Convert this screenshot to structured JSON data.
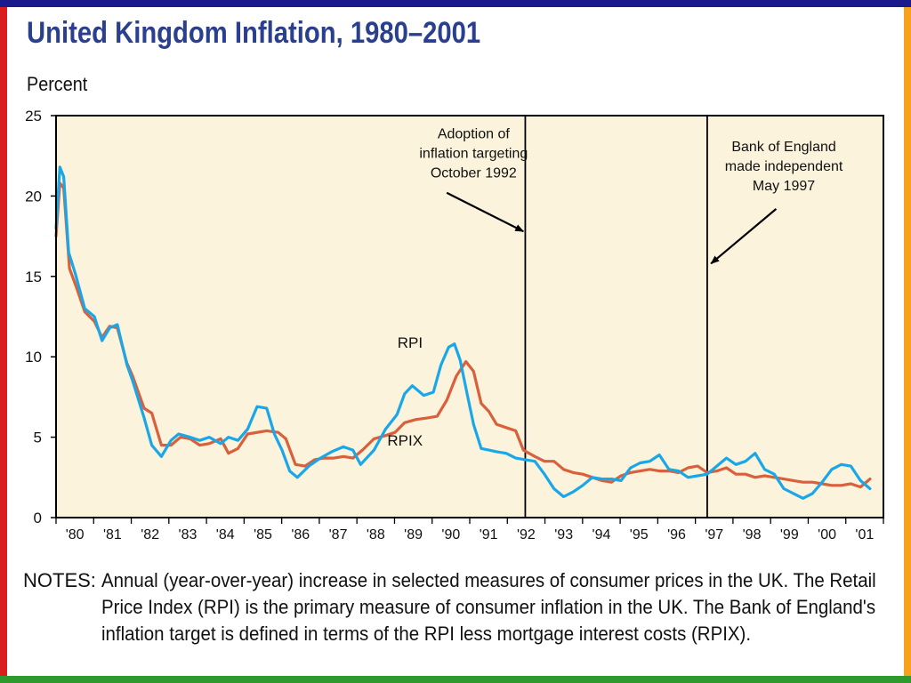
{
  "title": "United Kingdom Inflation, 1980–2001",
  "unit_label": "Percent",
  "notes_label": "NOTES:",
  "notes_lines": [
    "Annual (year-over-year) increase in selected measures of consumer prices in the UK. The Retail",
    "Price Index (RPI) is the primary measure of consumer inflation in the UK. The Bank of England's",
    "inflation target is defined in terms of the RPI less mortgage interest costs (RPIX)."
  ],
  "colors": {
    "rpi": "#1aa7e8",
    "rpix": "#d9603b",
    "plot_bg": "#fbf3dc",
    "title": "#2b3f8f",
    "frame": "#000000"
  },
  "chart_data": {
    "type": "line",
    "title": "United Kingdom Inflation, 1980–2001",
    "ylabel": "Percent",
    "xlim": [
      1980,
      2001.6
    ],
    "ylim": [
      0,
      25
    ],
    "yticks": [
      0,
      5,
      10,
      15,
      20,
      25
    ],
    "xtick_labels": [
      "'80",
      "'81",
      "'82",
      "'83",
      "'84",
      "'85",
      "'86",
      "'87",
      "'88",
      "'89",
      "'90",
      "'91",
      "'92",
      "'93",
      "'94",
      "'95",
      "'96",
      "'97",
      "'98",
      "'99",
      "'00",
      "'01"
    ],
    "grid": false,
    "series": [
      {
        "name": "RPI",
        "x": [
          1980.0,
          1980.1,
          1980.2,
          1980.33,
          1980.5,
          1980.75,
          1981.0,
          1981.2,
          1981.4,
          1981.6,
          1981.85,
          1982.0,
          1982.3,
          1982.5,
          1982.75,
          1983.0,
          1983.2,
          1983.5,
          1983.75,
          1984.0,
          1984.3,
          1984.5,
          1984.75,
          1985.0,
          1985.25,
          1985.5,
          1985.7,
          1985.9,
          1986.1,
          1986.3,
          1986.6,
          1986.9,
          1987.2,
          1987.5,
          1987.75,
          1987.95,
          1988.3,
          1988.6,
          1988.9,
          1989.1,
          1989.3,
          1989.6,
          1989.85,
          1990.05,
          1990.25,
          1990.4,
          1990.55,
          1990.75,
          1990.9,
          1991.1,
          1991.3,
          1991.5,
          1991.75,
          1992.0,
          1992.25,
          1992.5,
          1992.75,
          1993.0,
          1993.25,
          1993.5,
          1993.75,
          1994.0,
          1994.25,
          1994.5,
          1994.75,
          1995.0,
          1995.25,
          1995.5,
          1995.75,
          1996.0,
          1996.25,
          1996.5,
          1996.75,
          1997.0,
          1997.25,
          1997.5,
          1997.75,
          1998.0,
          1998.25,
          1998.5,
          1998.75,
          1999.0,
          1999.25,
          1999.5,
          1999.75,
          2000.0,
          2000.25,
          2000.5,
          2000.75,
          2001.0,
          2001.25
        ],
        "y": [
          18.0,
          21.8,
          21.2,
          16.5,
          15.2,
          13.0,
          12.5,
          11.0,
          11.8,
          12.0,
          9.5,
          8.5,
          6.2,
          4.5,
          3.8,
          4.8,
          5.2,
          5.0,
          4.8,
          5.0,
          4.6,
          5.0,
          4.8,
          5.5,
          6.9,
          6.8,
          5.2,
          4.2,
          2.9,
          2.5,
          3.2,
          3.7,
          4.1,
          4.4,
          4.2,
          3.3,
          4.2,
          5.5,
          6.4,
          7.7,
          8.2,
          7.6,
          7.8,
          9.5,
          10.6,
          10.8,
          9.8,
          7.5,
          5.8,
          4.3,
          4.2,
          4.1,
          4.0,
          3.7,
          3.6,
          3.5,
          2.7,
          1.8,
          1.3,
          1.6,
          2.0,
          2.5,
          2.4,
          2.4,
          2.3,
          3.1,
          3.4,
          3.5,
          3.9,
          3.0,
          2.9,
          2.5,
          2.6,
          2.7,
          3.2,
          3.7,
          3.3,
          3.5,
          4.0,
          3.0,
          2.7,
          1.8,
          1.5,
          1.2,
          1.5,
          2.2,
          3.0,
          3.3,
          3.2,
          2.3,
          1.8
        ]
      },
      {
        "name": "RPIX",
        "x": [
          1980.0,
          1980.1,
          1980.2,
          1980.35,
          1980.55,
          1980.75,
          1981.0,
          1981.2,
          1981.4,
          1981.6,
          1981.85,
          1982.0,
          1982.3,
          1982.5,
          1982.75,
          1983.0,
          1983.25,
          1983.5,
          1983.75,
          1984.0,
          1984.3,
          1984.5,
          1984.75,
          1985.0,
          1985.5,
          1985.8,
          1986.0,
          1986.25,
          1986.5,
          1986.75,
          1987.0,
          1987.25,
          1987.5,
          1987.75,
          1988.0,
          1988.3,
          1988.6,
          1988.85,
          1989.1,
          1989.4,
          1989.7,
          1989.95,
          1990.2,
          1990.45,
          1990.7,
          1990.9,
          1991.1,
          1991.3,
          1991.5,
          1991.75,
          1992.0,
          1992.2,
          1992.5,
          1992.75,
          1993.0,
          1993.25,
          1993.5,
          1993.75,
          1994.0,
          1994.25,
          1994.5,
          1994.75,
          1995.0,
          1995.25,
          1995.5,
          1995.75,
          1996.0,
          1996.25,
          1996.5,
          1996.75,
          1997.0,
          1997.25,
          1997.5,
          1997.75,
          1998.0,
          1998.25,
          1998.5,
          1998.75,
          1999.0,
          1999.25,
          1999.5,
          1999.75,
          2000.0,
          2000.25,
          2000.5,
          2000.75,
          2001.0,
          2001.25
        ],
        "y": [
          17.5,
          20.8,
          20.5,
          15.5,
          14.2,
          12.8,
          12.2,
          11.2,
          11.9,
          11.8,
          9.6,
          8.8,
          6.8,
          6.5,
          4.5,
          4.5,
          5.0,
          4.9,
          4.5,
          4.6,
          4.9,
          4.0,
          4.3,
          5.2,
          5.4,
          5.3,
          4.9,
          3.3,
          3.2,
          3.6,
          3.7,
          3.7,
          3.8,
          3.7,
          4.2,
          4.9,
          5.1,
          5.3,
          5.9,
          6.1,
          6.2,
          6.3,
          7.3,
          8.8,
          9.7,
          9.1,
          7.1,
          6.6,
          5.8,
          5.6,
          5.4,
          4.2,
          3.8,
          3.5,
          3.5,
          3.0,
          2.8,
          2.7,
          2.5,
          2.3,
          2.2,
          2.6,
          2.8,
          2.9,
          3.0,
          2.9,
          2.9,
          2.8,
          3.1,
          3.2,
          2.8,
          2.9,
          3.1,
          2.7,
          2.7,
          2.5,
          2.6,
          2.5,
          2.4,
          2.3,
          2.2,
          2.2,
          2.1,
          2.0,
          2.0,
          2.1,
          1.9,
          2.4
        ]
      }
    ],
    "annotations": [
      {
        "text": "RPI",
        "x": 1989.85,
        "y": 10.9,
        "kind": "series-label"
      },
      {
        "text": "RPIX",
        "x": 1989.85,
        "y": 4.8,
        "kind": "series-label"
      },
      {
        "lines": [
          "Adoption of",
          "inflation targeting",
          "October 1992"
        ],
        "event_x": 1992.25,
        "arrow_from": [
          1990.2,
          20.2
        ],
        "arrow_to": [
          1992.2,
          17.8
        ],
        "text_x": 1990.9,
        "text_y": 23.6,
        "kind": "event"
      },
      {
        "lines": [
          "Bank of England",
          "made independent",
          "May 1997"
        ],
        "event_x": 1997.0,
        "arrow_from": [
          1998.8,
          19.2
        ],
        "arrow_to": [
          1997.1,
          15.8
        ],
        "text_x": 1999.0,
        "text_y": 22.8,
        "kind": "event"
      }
    ]
  }
}
